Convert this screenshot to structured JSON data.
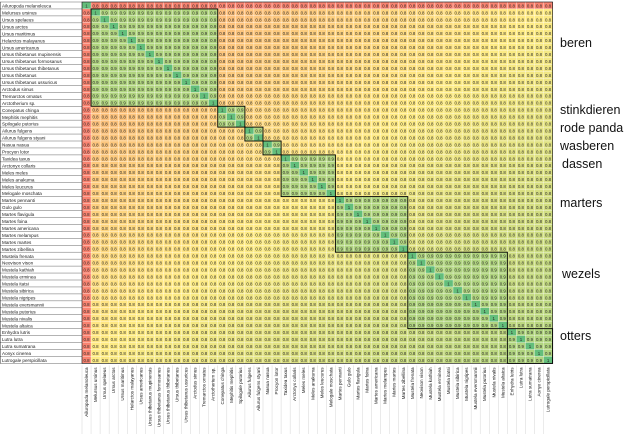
{
  "chart_data": {
    "type": "heatmap",
    "title": "",
    "rows": [
      "Ailuropoda melanoleuca",
      "Melursus ursinus",
      "Ursus spelaeus",
      "Ursus arctos",
      "Ursus maritimus",
      "Helarctos malayanus",
      "Ursus americanus",
      "Ursus thibetanus mupinensis",
      "Ursus thibetanus formosanus",
      "Ursus thibetanus thibetanus",
      "Ursus thibetanus",
      "Ursus thibetanus ussuricus",
      "Arctodus simus",
      "Tremarctos ornatus",
      "Arctotherium sp.",
      "Conepatus chinga",
      "Mephitis mephitis",
      "Spilogale putorius",
      "Ailurus fulgens",
      "Ailurus fulgens styani",
      "Nasua nasua",
      "Procyon lotor",
      "Taxidea taxus",
      "Arctonyx collaris",
      "Meles meles",
      "Meles anakuma",
      "Meles leucurus",
      "Melogale moschata",
      "Martes pennanti",
      "Gulo gulo",
      "Martes flavigula",
      "Martes foina",
      "Martes americana",
      "Martes melampus",
      "Martes martes",
      "Martes zibellina",
      "Mustela frenata",
      "Neovison vison",
      "Mustela kathiah",
      "Mustela erminea",
      "Mustela itatsi",
      "Mustela sibirica",
      "Mustela nigripes",
      "Mustela eversmannii",
      "Mustela putorius",
      "Mustela nivalis",
      "Mustela altaica",
      "Enhydra lutris",
      "Lutra lutra",
      "Lutra sumatrana",
      "Aonyx cinerea",
      "Lutrogale perspicillata"
    ],
    "columns": [
      "Ailuropoda melanoleuca",
      "Melursus ursinus",
      "Ursus spelaeus",
      "Ursus arctos",
      "Ursus maritimus",
      "Helarctos malayanus",
      "Ursus americanus",
      "Ursus thibetanus mupinensis",
      "Ursus thibetanus formosanus",
      "Ursus thibetanus thibetanus",
      "Ursus thibetanus",
      "Ursus thibetanus ussuricus",
      "Arctodus simus",
      "Tremarctos ornatus",
      "Arctotherium sp.",
      "Conepatus chinga",
      "Mephitis mephitis",
      "Spilogale putorius",
      "Ailurus fulgens",
      "Ailurus fulgens styani",
      "Nasua nasua",
      "Procyon lotor",
      "Taxidea taxus",
      "Arctonyx collaris",
      "Meles meles",
      "Meles anakuma",
      "Meles leucurus",
      "Melogale moschata",
      "Martes pennanti",
      "Gulo gulo",
      "Martes flavigula",
      "Martes foina",
      "Martes americana",
      "Martes melampus",
      "Martes martes",
      "Martes zibellina",
      "Mustela frenata",
      "Neovison vison",
      "Mustela kathiah",
      "Mustela erminea",
      "Mustela itatsi",
      "Mustela sibirica",
      "Mustela nigripes",
      "Mustela eversmannii",
      "Mustela putorius",
      "Mustela nivalis",
      "Mustela altaica",
      "Enhydra lutris",
      "Lutra lutra",
      "Lutra sumatrana",
      "Aonyx cinerea",
      "Lutrogale perspicillata"
    ],
    "diagonal_value": 1,
    "default_value": 0.8,
    "within_group_value": 0.9,
    "groups": [
      {
        "label": "beren",
        "first_row": 1,
        "last_row": 14
      },
      {
        "label": "stinkdieren",
        "first_row": 15,
        "last_row": 17
      },
      {
        "label": "rode panda",
        "first_row": 18,
        "last_row": 19
      },
      {
        "label": "wasberen",
        "first_row": 20,
        "last_row": 21
      },
      {
        "label": "dassen",
        "first_row": 22,
        "last_row": 27
      },
      {
        "label": "marters",
        "first_row": 28,
        "last_row": 35
      },
      {
        "label": "wezels",
        "first_row": 36,
        "last_row": 46
      },
      {
        "label": "otters",
        "first_row": 47,
        "last_row": 51
      }
    ],
    "color_scale": {
      "low": "#f8696b",
      "mid": "#ffeb84",
      "high": "#63be7b"
    },
    "legend": "none",
    "grid": true
  }
}
